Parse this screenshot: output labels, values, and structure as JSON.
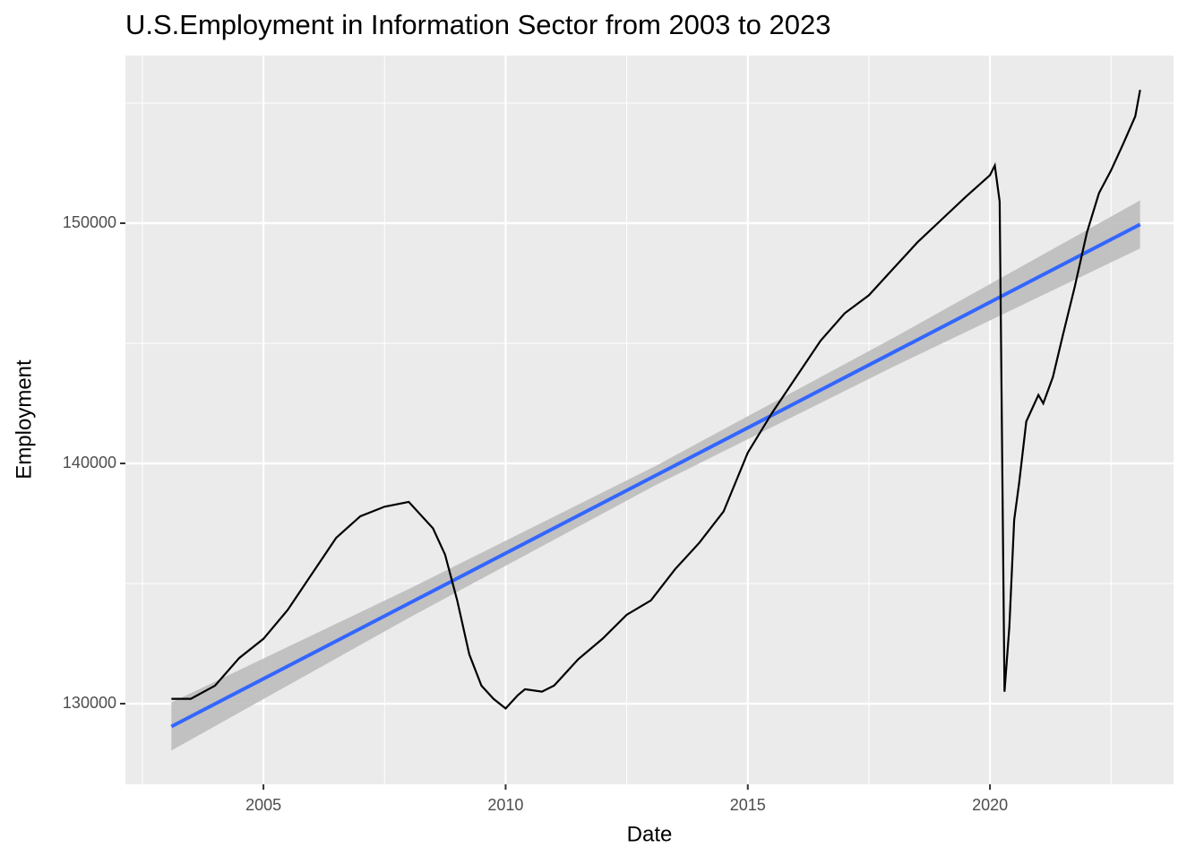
{
  "chart_data": {
    "type": "line",
    "title": "U.S.Employment in Information Sector from 2003 to 2023",
    "x_label": "Date",
    "y_label": "Employment",
    "x": [
      2003.1,
      2003.5,
      2004.0,
      2004.5,
      2005.0,
      2005.5,
      2006.0,
      2006.5,
      2007.0,
      2007.5,
      2008.0,
      2008.5,
      2008.75,
      2009.0,
      2009.25,
      2009.5,
      2009.75,
      2010.0,
      2010.25,
      2010.4,
      2010.75,
      2011.0,
      2011.5,
      2012.0,
      2012.5,
      2013.0,
      2013.5,
      2014.0,
      2014.5,
      2015.0,
      2015.5,
      2016.0,
      2016.5,
      2017.0,
      2017.5,
      2018.0,
      2018.5,
      2019.0,
      2019.5,
      2020.0,
      2020.1,
      2020.2,
      2020.3,
      2020.4,
      2020.5,
      2020.6,
      2020.75,
      2021.0,
      2021.1,
      2021.3,
      2021.5,
      2021.75,
      2022.0,
      2022.25,
      2022.5,
      2022.75,
      2023.0,
      2023.1
    ],
    "series": [
      {
        "color": "#000000",
        "values": [
          130200,
          130200,
          130750,
          131900,
          132700,
          133900,
          135400,
          136900,
          137800,
          138200,
          138400,
          137300,
          136200,
          134300,
          132050,
          130750,
          130200,
          129800,
          130350,
          130600,
          130500,
          130750,
          131850,
          132700,
          133700,
          134300,
          135600,
          136700,
          138000,
          140450,
          142100,
          143600,
          145100,
          146250,
          147000,
          148100,
          149200,
          150150,
          151100,
          152000,
          152400,
          150900,
          130500,
          133200,
          137650,
          139150,
          141750,
          142850,
          142500,
          143600,
          145300,
          147350,
          149600,
          151250,
          152200,
          153300,
          154450,
          155550
        ]
      }
    ],
    "trend": {
      "color": "#3366ff",
      "band_color": "#bdbdbd",
      "x": [
        2003.1,
        2008.0,
        2013.1,
        2018.0,
        2023.1
      ],
      "values": [
        129050,
        134170,
        139500,
        144620,
        149950
      ],
      "lower": [
        128050,
        133570,
        139100,
        144020,
        148950
      ],
      "upper": [
        130050,
        134770,
        139900,
        145220,
        150950
      ]
    },
    "xlim": [
      2002.15,
      2023.79
    ],
    "xticks": [
      2005,
      2010,
      2015,
      2020
    ],
    "x_minor_ticks": [
      2002.5,
      2007.5,
      2012.5,
      2017.5,
      2022.5
    ],
    "ylim": [
      126642,
      156978
    ],
    "yticks": [
      130000,
      140000,
      150000
    ],
    "y_minor_ticks": [
      135000,
      145000,
      155000
    ],
    "grid": true
  }
}
